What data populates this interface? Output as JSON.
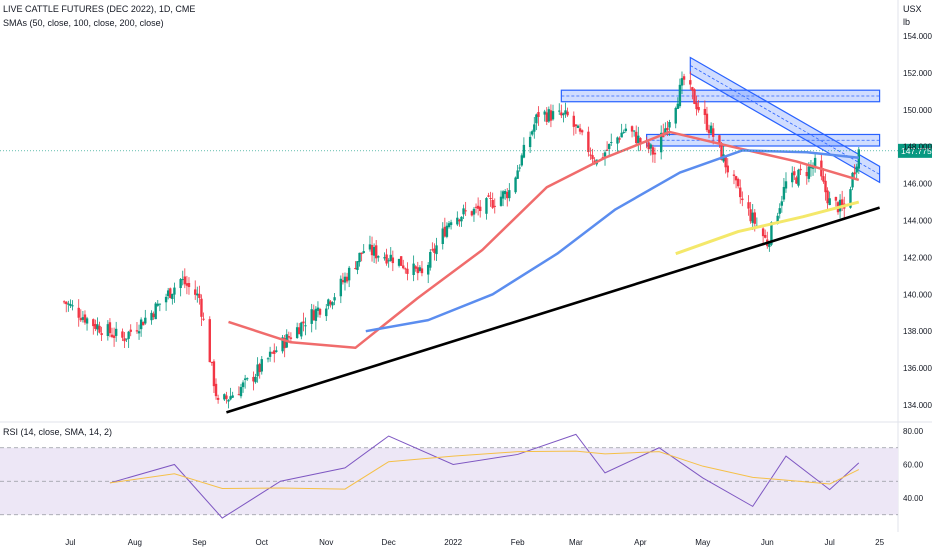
{
  "header": {
    "title": "LIVE CATTLE FUTURES (DEC 2022), 1D, CME",
    "indicator": "SMAs (50, close, 100, close, 200, close)"
  },
  "price_axis": {
    "currency": "USX",
    "unit": "lb",
    "ticks": [
      "154.000",
      "152.000",
      "150.000",
      "148.000",
      "146.000",
      "144.000",
      "142.000",
      "140.000",
      "138.000",
      "136.000",
      "134.000"
    ],
    "last_price": "147.775"
  },
  "rsi": {
    "title": "RSI (14, close, SMA, 14, 2)",
    "ticks": [
      "80.00",
      "60.00",
      "40.00"
    ],
    "upper_band": 70,
    "lower_band": 30
  },
  "time_axis": {
    "ticks": [
      "Jul",
      "Aug",
      "Sep",
      "Oct",
      "Nov",
      "Dec",
      "2022",
      "Feb",
      "Mar",
      "Apr",
      "May",
      "Jun",
      "Jul",
      "25"
    ]
  },
  "colors": {
    "up": "#089981",
    "down": "#f23645",
    "sma50": "#f06c6c",
    "sma100": "#5b8def",
    "sma200": "#f4e86a",
    "trendline": "#000000",
    "zone": "#2962ff",
    "rsi_line": "#7e57c2",
    "rsi_ma": "#f5c048",
    "rsi_band_fill": "#ede7f6",
    "price_label_bg": "#089981"
  },
  "chart_data": {
    "type": "candlestick",
    "title": "LIVE CATTLE FUTURES (DEC 2022), 1D, CME",
    "y_unit": "USX/lb",
    "ylim": [
      133.5,
      155
    ],
    "x_ticks": [
      "Jul",
      "Aug",
      "Sep",
      "Oct",
      "Nov",
      "Dec",
      "2022",
      "Feb",
      "Mar",
      "Apr",
      "May",
      "Jun",
      "Jul",
      "25"
    ],
    "price_path": [
      {
        "date": "2021-06-28",
        "close": 139.6
      },
      {
        "date": "2021-07-12",
        "close": 138.4
      },
      {
        "date": "2021-07-26",
        "close": 137.6
      },
      {
        "date": "2021-08-09",
        "close": 139.0
      },
      {
        "date": "2021-08-23",
        "close": 140.8
      },
      {
        "date": "2021-09-01",
        "close": 139.8
      },
      {
        "date": "2021-09-10",
        "close": 134.0
      },
      {
        "date": "2021-09-24",
        "close": 135.2
      },
      {
        "date": "2021-10-08",
        "close": 137.0
      },
      {
        "date": "2021-10-22",
        "close": 138.6
      },
      {
        "date": "2021-11-05",
        "close": 140.0
      },
      {
        "date": "2021-11-19",
        "close": 142.4
      },
      {
        "date": "2021-12-03",
        "close": 142.0
      },
      {
        "date": "2021-12-17",
        "close": 141.0
      },
      {
        "date": "2021-12-31",
        "close": 144.2
      },
      {
        "date": "2022-01-14",
        "close": 144.6
      },
      {
        "date": "2022-01-28",
        "close": 145.6
      },
      {
        "date": "2022-02-11",
        "close": 149.8
      },
      {
        "date": "2022-02-25",
        "close": 149.6
      },
      {
        "date": "2022-03-11",
        "close": 147.2
      },
      {
        "date": "2022-03-25",
        "close": 149.0
      },
      {
        "date": "2022-04-08",
        "close": 147.6
      },
      {
        "date": "2022-04-22",
        "close": 151.6
      },
      {
        "date": "2022-05-06",
        "close": 148.6
      },
      {
        "date": "2022-05-20",
        "close": 145.0
      },
      {
        "date": "2022-06-01",
        "close": 142.8
      },
      {
        "date": "2022-06-10",
        "close": 146.0
      },
      {
        "date": "2022-06-24",
        "close": 147.0
      },
      {
        "date": "2022-07-01",
        "close": 145.0
      },
      {
        "date": "2022-07-08",
        "close": 144.6
      },
      {
        "date": "2022-07-15",
        "close": 147.775
      }
    ],
    "sma50": [
      {
        "date": "2021-09-15",
        "value": 138.5
      },
      {
        "date": "2021-10-15",
        "value": 137.4
      },
      {
        "date": "2021-11-15",
        "value": 137.1
      },
      {
        "date": "2021-12-15",
        "value": 139.8
      },
      {
        "date": "2022-01-15",
        "value": 142.4
      },
      {
        "date": "2022-02-15",
        "value": 145.8
      },
      {
        "date": "2022-03-15",
        "value": 147.4
      },
      {
        "date": "2022-04-15",
        "value": 148.8
      },
      {
        "date": "2022-05-15",
        "value": 148.0
      },
      {
        "date": "2022-06-15",
        "value": 147.2
      },
      {
        "date": "2022-07-15",
        "value": 146.2
      }
    ],
    "sma100": [
      {
        "date": "2021-11-20",
        "value": 138.0
      },
      {
        "date": "2021-12-20",
        "value": 138.6
      },
      {
        "date": "2022-01-20",
        "value": 140.0
      },
      {
        "date": "2022-02-20",
        "value": 142.2
      },
      {
        "date": "2022-03-20",
        "value": 144.6
      },
      {
        "date": "2022-04-20",
        "value": 146.6
      },
      {
        "date": "2022-05-20",
        "value": 147.8
      },
      {
        "date": "2022-06-20",
        "value": 147.7
      },
      {
        "date": "2022-07-15",
        "value": 147.4
      }
    ],
    "sma200": [
      {
        "date": "2022-04-18",
        "value": 142.2
      },
      {
        "date": "2022-05-18",
        "value": 143.4
      },
      {
        "date": "2022-06-18",
        "value": 144.2
      },
      {
        "date": "2022-07-15",
        "value": 145.0
      }
    ],
    "trendline": [
      {
        "date": "2021-09-14",
        "value": 133.6
      },
      {
        "date": "2022-07-25",
        "value": 144.7
      }
    ],
    "resistance_zones": [
      {
        "from": "2022-02-22",
        "to": "2022-07-25",
        "low": 150.6,
        "high": 150.9
      },
      {
        "from": "2022-04-04",
        "to": "2022-07-25",
        "low": 148.2,
        "high": 148.5
      }
    ],
    "descending_channel": [
      {
        "date": "2022-04-25",
        "value": 152.4
      },
      {
        "date": "2022-07-25",
        "value": 146.5
      }
    ],
    "rsi_path": [
      {
        "date": "2021-07-20",
        "value": 49
      },
      {
        "date": "2021-08-20",
        "value": 60
      },
      {
        "date": "2021-09-12",
        "value": 28
      },
      {
        "date": "2021-10-10",
        "value": 50
      },
      {
        "date": "2021-11-10",
        "value": 58
      },
      {
        "date": "2021-12-01",
        "value": 77
      },
      {
        "date": "2022-01-01",
        "value": 60
      },
      {
        "date": "2022-02-01",
        "value": 66
      },
      {
        "date": "2022-03-01",
        "value": 78
      },
      {
        "date": "2022-03-15",
        "value": 55
      },
      {
        "date": "2022-04-10",
        "value": 70
      },
      {
        "date": "2022-05-01",
        "value": 52
      },
      {
        "date": "2022-05-25",
        "value": 35
      },
      {
        "date": "2022-06-10",
        "value": 65
      },
      {
        "date": "2022-07-01",
        "value": 45
      },
      {
        "date": "2022-07-15",
        "value": 61
      }
    ]
  }
}
